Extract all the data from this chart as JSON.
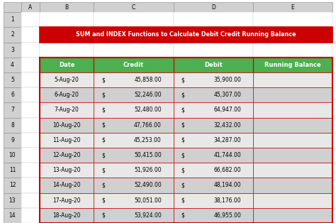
{
  "title": "SUM and INDEX Functions to Calculate Debit Credit Running Balance",
  "title_bg": "#CC0000",
  "title_fg": "#FFFFFF",
  "header": [
    "Date",
    "Credit",
    "Debit",
    "Running Balance"
  ],
  "header_bg": "#4CAF50",
  "header_fg": "#FFFFFF",
  "rows": [
    [
      "5-Aug-20",
      "$",
      "45,858.00",
      "$",
      "35,900.00",
      ""
    ],
    [
      "6-Aug-20",
      "$",
      "52,246.00",
      "$",
      "45,307.00",
      ""
    ],
    [
      "7-Aug-20",
      "$",
      "52,480.00",
      "$",
      "64,947.00",
      ""
    ],
    [
      "10-Aug-20",
      "$",
      "47,766.00",
      "$",
      "32,432.00",
      ""
    ],
    [
      "11-Aug-20",
      "$",
      "45,253.00",
      "$",
      "34,287.00",
      ""
    ],
    [
      "12-Aug-20",
      "$",
      "50,415.00",
      "$",
      "41,744.00",
      ""
    ],
    [
      "13-Aug-20",
      "$",
      "51,926.00",
      "$",
      "66,682.00",
      ""
    ],
    [
      "14-Aug-20",
      "$",
      "52,490.00",
      "$",
      "48,194.00",
      ""
    ],
    [
      "17-Aug-20",
      "$",
      "50,051.00",
      "$",
      "38,176.00",
      ""
    ],
    [
      "18-Aug-20",
      "$",
      "53,924.00",
      "$",
      "46,955.00",
      ""
    ]
  ],
  "row_bg_odd": "#D9D9D9",
  "row_bg_even": "#BFBFBF",
  "border_color": "#CC0000",
  "col_header_bg": "#808080",
  "excel_header_bg": "#D0D0D0",
  "excel_header_fg": "#000000",
  "excel_col_labels": [
    "A",
    "B",
    "C",
    "D",
    "E"
  ],
  "excel_row_labels": [
    "1",
    "2",
    "3",
    "4",
    "5",
    "6",
    "7",
    "8",
    "9",
    "10",
    "11",
    "12",
    "13",
    "14"
  ],
  "fig_bg": "#FFFFFF"
}
